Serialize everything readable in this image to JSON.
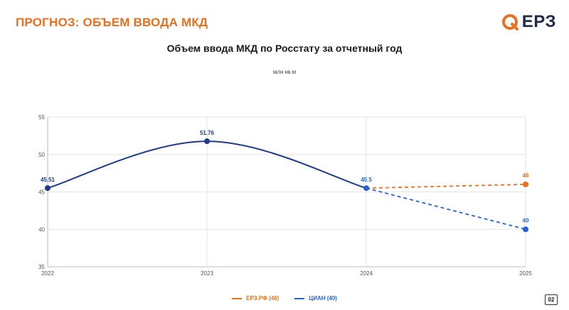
{
  "header": {
    "slide_title": "ПРОГНОЗ: ОБЪЕМ ВВОДА МКД",
    "logo_text": "ЕРЗ",
    "brand_color": "#e8701e",
    "logo_dark": "#1f2a44"
  },
  "footer": {
    "page_number": "02"
  },
  "chart_data": {
    "type": "line",
    "title": "Объем ввода МКД по Росстату за отчетный год",
    "unit": "млн кв.м",
    "x": [
      "2022",
      "2023",
      "2024",
      "2025"
    ],
    "ylim": [
      35,
      55
    ],
    "yticks": [
      35,
      40,
      45,
      50,
      55
    ],
    "grid": true,
    "legend_position": "bottom-center",
    "actual": {
      "color": "#1f3a8a",
      "points": [
        {
          "x": "2022",
          "y": 45.51,
          "label": "45.51"
        },
        {
          "x": "2023",
          "y": 51.76,
          "label": "51.76"
        },
        {
          "x": "2024",
          "y": 45.5,
          "label": "45.5"
        }
      ]
    },
    "series": [
      {
        "name": "ЕРЗ.РФ (46)",
        "color": "#e8701e",
        "dashed": true,
        "points": [
          {
            "x": "2024",
            "y": 45.5
          },
          {
            "x": "2025",
            "y": 46,
            "label": "46"
          }
        ]
      },
      {
        "name": "ЦИАН (40)",
        "color": "#2563d6",
        "dashed": true,
        "points": [
          {
            "x": "2024",
            "y": 45.5
          },
          {
            "x": "2025",
            "y": 40,
            "label": "40"
          }
        ]
      }
    ]
  }
}
